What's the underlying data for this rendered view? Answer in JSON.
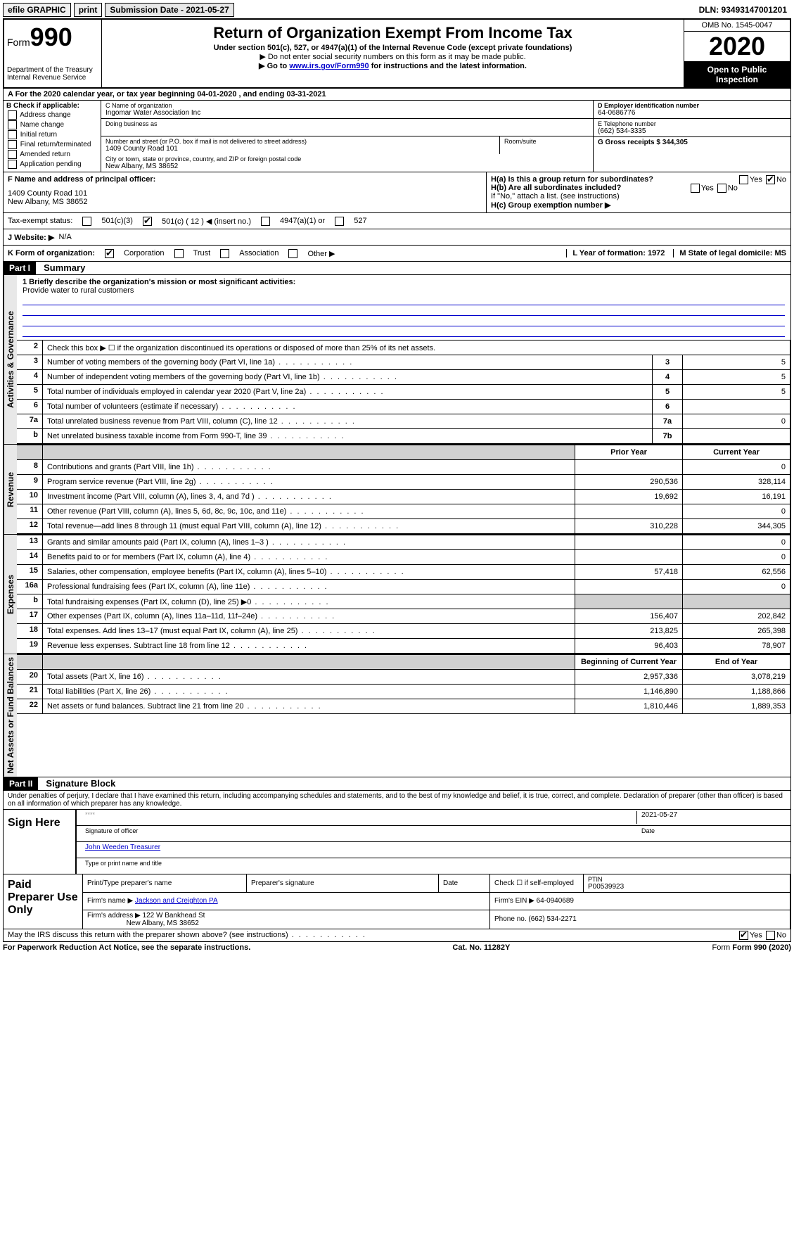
{
  "topbar": {
    "efile": "efile GRAPHIC",
    "print": "print",
    "sub_label": "Submission Date - 2021-05-27",
    "dln": "DLN: 93493147001201"
  },
  "header": {
    "form_label": "Form",
    "form_num": "990",
    "dept": "Department of the Treasury",
    "irs": "Internal Revenue Service",
    "title": "Return of Organization Exempt From Income Tax",
    "subtitle": "Under section 501(c), 527, or 4947(a)(1) of the Internal Revenue Code (except private foundations)",
    "note1": "▶ Do not enter social security numbers on this form as it may be made public.",
    "note2_pre": "▶ Go to ",
    "note2_link": "www.irs.gov/Form990",
    "note2_post": " for instructions and the latest information.",
    "omb": "OMB No. 1545-0047",
    "year": "2020",
    "open": "Open to Public Inspection"
  },
  "line_a": "A For the 2020 calendar year, or tax year beginning 04-01-2020    , and ending 03-31-2021",
  "box_b": {
    "title": "B Check if applicable:",
    "opts": [
      "Address change",
      "Name change",
      "Initial return",
      "Final return/terminated",
      "Amended return",
      "Application pending"
    ]
  },
  "box_c": {
    "label": "C Name of organization",
    "name": "Ingomar Water Association Inc",
    "dba_label": "Doing business as",
    "addr_label": "Number and street (or P.O. box if mail is not delivered to street address)",
    "room_label": "Room/suite",
    "addr": "1409 County Road 101",
    "city_label": "City or town, state or province, country, and ZIP or foreign postal code",
    "city": "New Albany, MS  38652"
  },
  "box_d": {
    "label": "D Employer identification number",
    "val": "64-0686776"
  },
  "box_e": {
    "label": "E Telephone number",
    "val": "(662) 534-3335"
  },
  "box_g": "G Gross receipts $ 344,305",
  "box_f": {
    "label": "F Name and address of principal officer:",
    "addr1": "1409 County Road 101",
    "addr2": "New Albany, MS  38652"
  },
  "box_h": {
    "a": "H(a)  Is this a group return for subordinates?",
    "b": "H(b)  Are all subordinates included?",
    "b_note": "If \"No,\" attach a list. (see instructions)",
    "c": "H(c)  Group exemption number ▶"
  },
  "tax_exempt": {
    "label": "Tax-exempt status:",
    "c12": "501(c) ( 12 ) ◀ (insert no.)",
    "c3": "501(c)(3)",
    "a1": "4947(a)(1) or",
    "s527": "527"
  },
  "website": {
    "label": "J   Website: ▶",
    "val": "N/A"
  },
  "line_k": {
    "label": "K Form of organization:",
    "corp": "Corporation",
    "trust": "Trust",
    "assoc": "Association",
    "other": "Other ▶"
  },
  "line_l": {
    "label": "L Year of formation: 1972"
  },
  "line_m": {
    "label": "M State of legal domicile: MS"
  },
  "part1": {
    "label": "Part I",
    "title": "Summary"
  },
  "mission": {
    "label": "1   Briefly describe the organization's mission or most significant activities:",
    "text": "Provide water to rural customers"
  },
  "lines_gov": [
    {
      "n": "2",
      "t": "Check this box ▶ ☐  if the organization discontinued its operations or disposed of more than 25% of its net assets."
    },
    {
      "n": "3",
      "t": "Number of voting members of the governing body (Part VI, line 1a)",
      "k": "3",
      "v": "5"
    },
    {
      "n": "4",
      "t": "Number of independent voting members of the governing body (Part VI, line 1b)",
      "k": "4",
      "v": "5"
    },
    {
      "n": "5",
      "t": "Total number of individuals employed in calendar year 2020 (Part V, line 2a)",
      "k": "5",
      "v": "5"
    },
    {
      "n": "6",
      "t": "Total number of volunteers (estimate if necessary)",
      "k": "6",
      "v": ""
    },
    {
      "n": "7a",
      "t": "Total unrelated business revenue from Part VIII, column (C), line 12",
      "k": "7a",
      "v": "0"
    },
    {
      "n": "b",
      "t": "Net unrelated business taxable income from Form 990-T, line 39",
      "k": "7b",
      "v": ""
    }
  ],
  "rev_head": {
    "prior": "Prior Year",
    "curr": "Current Year"
  },
  "lines_rev": [
    {
      "n": "8",
      "t": "Contributions and grants (Part VIII, line 1h)",
      "p": "",
      "c": "0"
    },
    {
      "n": "9",
      "t": "Program service revenue (Part VIII, line 2g)",
      "p": "290,536",
      "c": "328,114"
    },
    {
      "n": "10",
      "t": "Investment income (Part VIII, column (A), lines 3, 4, and 7d )",
      "p": "19,692",
      "c": "16,191"
    },
    {
      "n": "11",
      "t": "Other revenue (Part VIII, column (A), lines 5, 6d, 8c, 9c, 10c, and 11e)",
      "p": "",
      "c": "0"
    },
    {
      "n": "12",
      "t": "Total revenue—add lines 8 through 11 (must equal Part VIII, column (A), line 12)",
      "p": "310,228",
      "c": "344,305"
    }
  ],
  "lines_exp": [
    {
      "n": "13",
      "t": "Grants and similar amounts paid (Part IX, column (A), lines 1–3 )",
      "p": "",
      "c": "0"
    },
    {
      "n": "14",
      "t": "Benefits paid to or for members (Part IX, column (A), line 4)",
      "p": "",
      "c": "0"
    },
    {
      "n": "15",
      "t": "Salaries, other compensation, employee benefits (Part IX, column (A), lines 5–10)",
      "p": "57,418",
      "c": "62,556"
    },
    {
      "n": "16a",
      "t": "Professional fundraising fees (Part IX, column (A), line 11e)",
      "p": "",
      "c": "0"
    },
    {
      "n": "b",
      "t": "Total fundraising expenses (Part IX, column (D), line 25) ▶0",
      "p": "grey",
      "c": "grey"
    },
    {
      "n": "17",
      "t": "Other expenses (Part IX, column (A), lines 11a–11d, 11f–24e)",
      "p": "156,407",
      "c": "202,842"
    },
    {
      "n": "18",
      "t": "Total expenses. Add lines 13–17 (must equal Part IX, column (A), line 25)",
      "p": "213,825",
      "c": "265,398"
    },
    {
      "n": "19",
      "t": "Revenue less expenses. Subtract line 18 from line 12",
      "p": "96,403",
      "c": "78,907"
    }
  ],
  "net_head": {
    "prior": "Beginning of Current Year",
    "curr": "End of Year"
  },
  "lines_net": [
    {
      "n": "20",
      "t": "Total assets (Part X, line 16)",
      "p": "2,957,336",
      "c": "3,078,219"
    },
    {
      "n": "21",
      "t": "Total liabilities (Part X, line 26)",
      "p": "1,146,890",
      "c": "1,188,866"
    },
    {
      "n": "22",
      "t": "Net assets or fund balances. Subtract line 21 from line 20",
      "p": "1,810,446",
      "c": "1,889,353"
    }
  ],
  "part2": {
    "label": "Part II",
    "title": "Signature Block"
  },
  "perjury": "Under penalties of perjury, I declare that I have examined this return, including accompanying schedules and statements, and to the best of my knowledge and belief, it is true, correct, and complete. Declaration of preparer (other than officer) is based on all information of which preparer has any knowledge.",
  "sign": {
    "here": "Sign Here",
    "sig_label": "Signature of officer",
    "date": "2021-05-27",
    "date_label": "Date",
    "name": "John Weeden  Treasurer",
    "name_label": "Type or print name and title"
  },
  "paid": {
    "title": "Paid Preparer Use Only",
    "h1": "Print/Type preparer's name",
    "h2": "Preparer's signature",
    "h3": "Date",
    "h4": "Check ☐ if self-employed",
    "h5": "PTIN",
    "ptin": "P00539923",
    "firm_label": "Firm's name    ▶",
    "firm": "Jackson and Creighton PA",
    "ein_label": "Firm's EIN ▶",
    "ein": "64-0940689",
    "addr_label": "Firm's address ▶",
    "addr1": "122 W Bankhead St",
    "addr2": "New Albany, MS  38652",
    "phone_label": "Phone no.",
    "phone": "(662) 534-2271"
  },
  "discuss": "May the IRS discuss this return with the preparer shown above? (see instructions)",
  "footer": {
    "paperwork": "For Paperwork Reduction Act Notice, see the separate instructions.",
    "cat": "Cat. No. 11282Y",
    "form": "Form 990 (2020)"
  },
  "vert_labels": {
    "gov": "Activities & Governance",
    "rev": "Revenue",
    "exp": "Expenses",
    "net": "Net Assets or Fund Balances"
  }
}
